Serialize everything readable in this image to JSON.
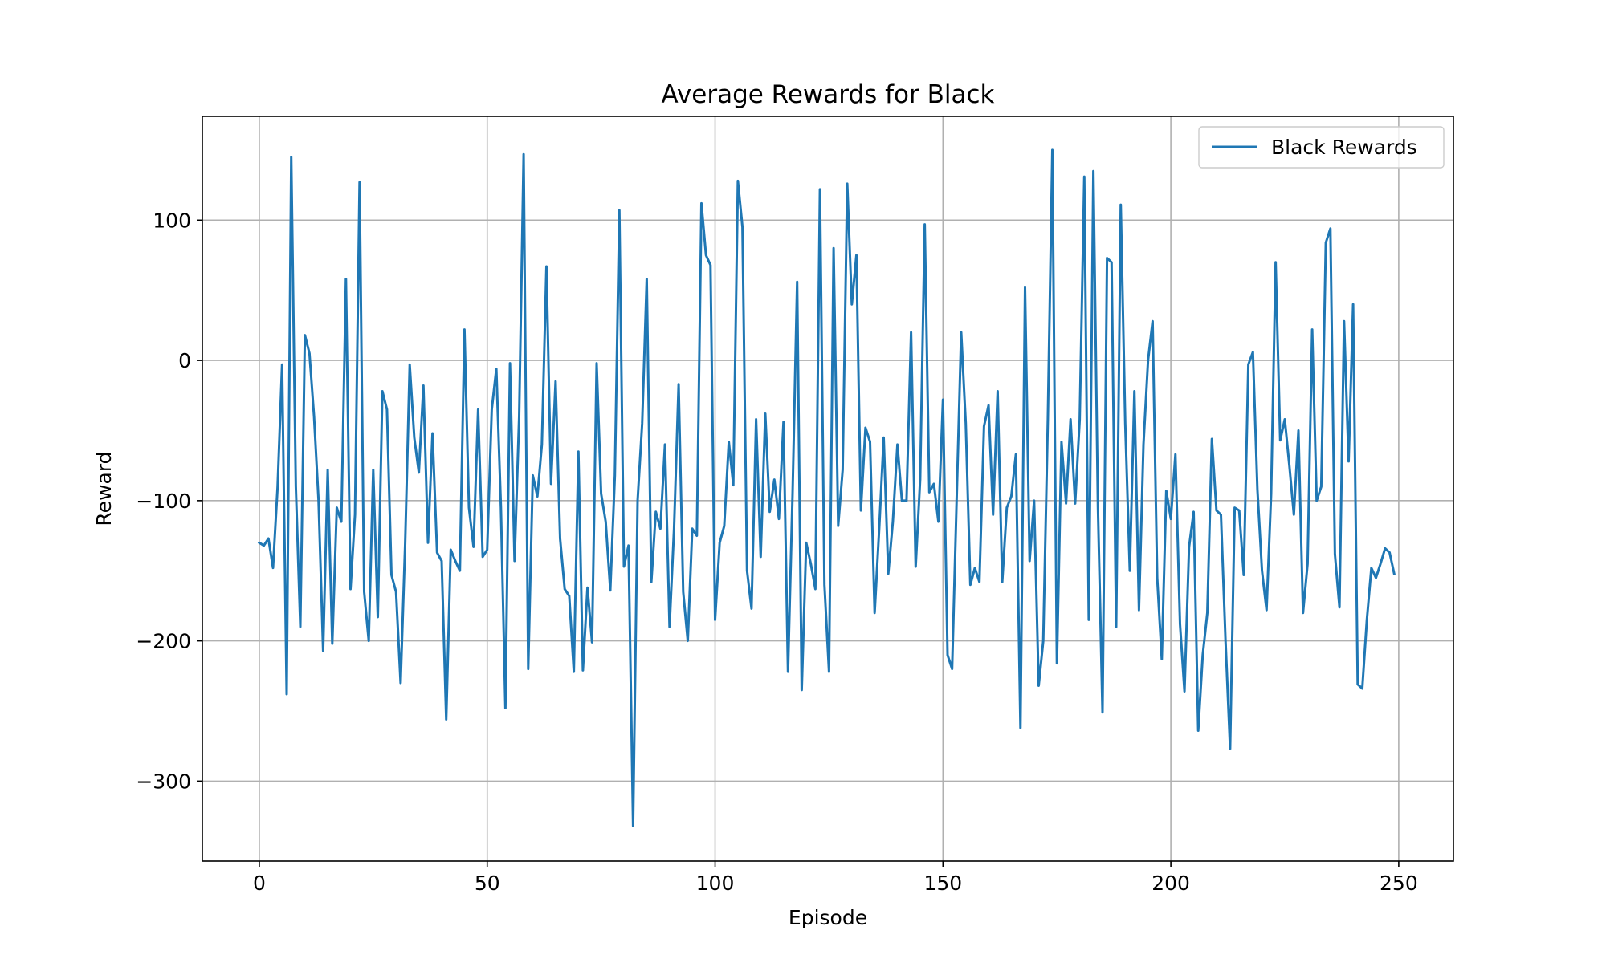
{
  "chart_data": {
    "type": "line",
    "title": "Average Rewards for Black",
    "xlabel": "Episode",
    "ylabel": "Reward",
    "xlim": [
      -12.5,
      262
    ],
    "ylim": [
      -357,
      174
    ],
    "xticks": [
      0,
      50,
      100,
      150,
      200,
      250
    ],
    "yticks": [
      -300,
      -200,
      -100,
      0,
      100
    ],
    "ytick_labels": [
      "−300",
      "−200",
      "−100",
      "0",
      "100"
    ],
    "grid": true,
    "legend_position": "top-right",
    "series": [
      {
        "name": "Black Rewards",
        "color": "#1f77b4",
        "x_start": 0,
        "x_step": 1,
        "values": [
          -130,
          -132,
          -127,
          -148,
          -90,
          -3,
          -238,
          145,
          -90,
          -190,
          18,
          5,
          -40,
          -100,
          -207,
          -78,
          -202,
          -105,
          -115,
          58,
          -163,
          -110,
          127,
          -165,
          -200,
          -78,
          -183,
          -22,
          -35,
          -153,
          -165,
          -230,
          -130,
          -3,
          -55,
          -80,
          -18,
          -130,
          -52,
          -137,
          -143,
          -256,
          -135,
          -143,
          -150,
          22,
          -105,
          -133,
          -35,
          -140,
          -135,
          -35,
          -6,
          -105,
          -248,
          -2,
          -143,
          -40,
          147,
          -220,
          -82,
          -97,
          -60,
          67,
          -88,
          -15,
          -127,
          -163,
          -168,
          -222,
          -65,
          -221,
          -162,
          -201,
          -2,
          -95,
          -115,
          -164,
          -82,
          107,
          -147,
          -132,
          -332,
          -100,
          -45,
          58,
          -158,
          -108,
          -120,
          -60,
          -190,
          -120,
          -17,
          -165,
          -200,
          -120,
          -125,
          112,
          75,
          68,
          -185,
          -130,
          -118,
          -58,
          -89,
          128,
          95,
          -150,
          -177,
          -42,
          -140,
          -38,
          -108,
          -85,
          -113,
          -44,
          -222,
          -95,
          56,
          -235,
          -130,
          -145,
          -163,
          122,
          -160,
          -222,
          80,
          -118,
          -78,
          126,
          40,
          75,
          -107,
          -48,
          -58,
          -180,
          -120,
          -55,
          -152,
          -115,
          -60,
          -100,
          -100,
          20,
          -147,
          -85,
          97,
          -94,
          -88,
          -115,
          -28,
          -210,
          -220,
          -100,
          20,
          -45,
          -160,
          -148,
          -158,
          -47,
          -32,
          -110,
          -22,
          -158,
          -105,
          -97,
          -67,
          -262,
          52,
          -143,
          -100,
          -232,
          -200,
          -42,
          150,
          -216,
          -58,
          -102,
          -42,
          -102,
          -42,
          131,
          -185,
          135,
          -105,
          -251,
          73,
          70,
          -190,
          111,
          -45,
          -150,
          -22,
          -178,
          -60,
          0,
          28,
          -155,
          -213,
          -93,
          -113,
          -67,
          -188,
          -236,
          -133,
          -108,
          -264,
          -210,
          -180,
          -56,
          -107,
          -110,
          -200,
          -277,
          -105,
          -107,
          -153,
          -3,
          6,
          -92,
          -150,
          -178,
          -95,
          70,
          -57,
          -42,
          -75,
          -110,
          -50,
          -180,
          -145,
          22,
          -100,
          -90,
          84,
          94,
          -138,
          -176,
          28,
          -72,
          40,
          -231,
          -234,
          -185,
          -148,
          -155,
          -145,
          -134,
          -137,
          -152
        ]
      }
    ]
  }
}
